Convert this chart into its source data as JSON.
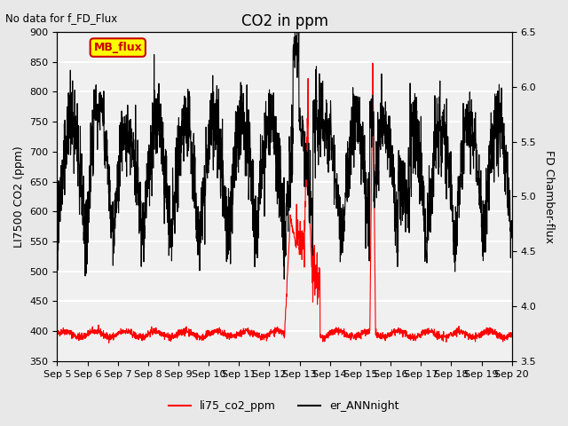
{
  "title": "CO2 in ppm",
  "top_left_text": "No data for f_FD_Flux",
  "ylabel_left": "LI7500 CO2 (ppm)",
  "ylabel_right": "FD Chamber-flux",
  "ylim_left": [
    350,
    900
  ],
  "ylim_right": [
    3.5,
    6.5
  ],
  "yticks_left": [
    350,
    400,
    450,
    500,
    550,
    600,
    650,
    700,
    750,
    800,
    850,
    900
  ],
  "yticks_right": [
    3.5,
    4.0,
    4.5,
    5.0,
    5.5,
    6.0,
    6.5
  ],
  "xtick_labels": [
    "Sep 5",
    "Sep 6",
    "Sep 7",
    "Sep 8",
    "Sep 9",
    "Sep 10",
    "Sep 11",
    "Sep 12",
    "Sep 13",
    "Sep 14",
    "Sep 15",
    "Sep 16",
    "Sep 17",
    "Sep 18",
    "Sep 19",
    "Sep 20"
  ],
  "legend_labels": [
    "li75_co2_ppm",
    "er_ANNnight"
  ],
  "legend_colors": [
    "red",
    "black"
  ],
  "mb_flux_box_color": "#ffff00",
  "mb_flux_text_color": "#cc0000",
  "mb_flux_border_color": "#cc0000",
  "background_color": "#e8e8e8",
  "plot_bg_color": "#f0f0f0",
  "grid_color": "#ffffff"
}
